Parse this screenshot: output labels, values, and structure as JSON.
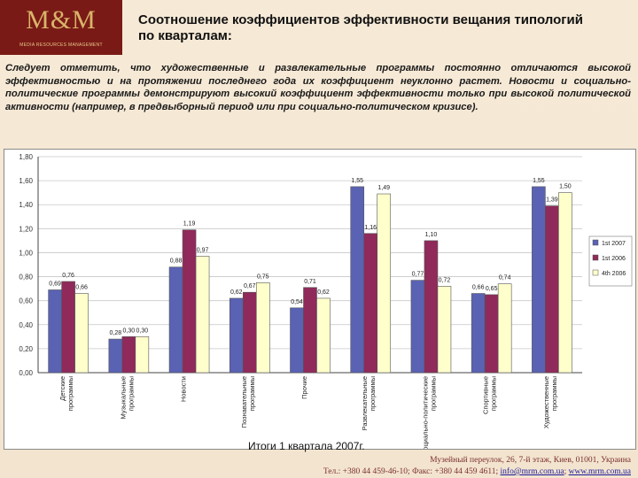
{
  "brand": {
    "logo_text": "M&M",
    "logo_subtext": "MEDIA RESOURCES MANAGEMENT"
  },
  "header": {
    "title_line1": "Соотношение коэффициентов эффективности вещания типологий",
    "title_line2": "по кварталам:"
  },
  "intro": {
    "text": "Следует отметить, что художественные и развлекательные программы  постоянно отличаются высокой эффективностью и на протяжении последнего года их коэффициент неуклонно растет. Новости и социально-политические программы демонстрируют высокий коэффициент эффективности только при высокой политической активности (например, в предвыборный период или при социально-политическом кризисе)."
  },
  "colors": {
    "background": "#f5e8d4",
    "series": [
      "#5a62b4",
      "#8f2a5a",
      "#ffffcc"
    ]
  },
  "chart_data": {
    "type": "bar",
    "title": "Итоги 1 квартала 2007г.",
    "categories": [
      "Детские программы",
      "Музыкальные программы",
      "Новости",
      "Познавательные программы",
      "Прочие",
      "Развлекательные программы",
      "Социально-политические программы",
      "Спортивные программы",
      "Художественные программы"
    ],
    "series": [
      {
        "name": "1st 2007",
        "values": [
          0.69,
          0.28,
          0.88,
          0.62,
          0.54,
          1.55,
          0.77,
          0.66,
          1.55
        ],
        "labels": [
          "0,69",
          "0,28",
          "0,88",
          "0,62",
          "0,54",
          "1,55",
          "0,77",
          "0,66",
          "1,55"
        ]
      },
      {
        "name": "1st 2006",
        "values": [
          0.76,
          0.3,
          1.19,
          0.67,
          0.71,
          1.16,
          1.1,
          0.65,
          1.39
        ],
        "labels": [
          "0,76",
          "0,30",
          "1,19",
          "0,67",
          "0,71",
          "1,16",
          "1,10",
          "0,65",
          "1,39"
        ]
      },
      {
        "name": "4th 2006",
        "values": [
          0.66,
          0.3,
          0.97,
          0.75,
          0.62,
          1.49,
          0.72,
          0.74,
          1.5
        ],
        "labels": [
          "0,66",
          "0,30",
          "0,97",
          "0,75",
          "0,62",
          "1,49",
          "0,72",
          "0,74",
          "1,50"
        ]
      }
    ],
    "ylim": [
      0,
      1.8
    ],
    "yticks": [
      "0,00",
      "0,20",
      "0,40",
      "0,60",
      "0,80",
      "1,00",
      "1,20",
      "1,40",
      "1,60",
      "1,80"
    ],
    "grid": true,
    "legend_position": "right"
  },
  "footer": {
    "address": "Музейный переулок, 26, 7-й этаж, Киев, 01001, Украина",
    "contacts": "Тел.: +380 44 459-46-10; Факс: +380 44 459 4611;",
    "email": "info@mrm.com.ua",
    "website": "www.mrm.com.ua"
  }
}
